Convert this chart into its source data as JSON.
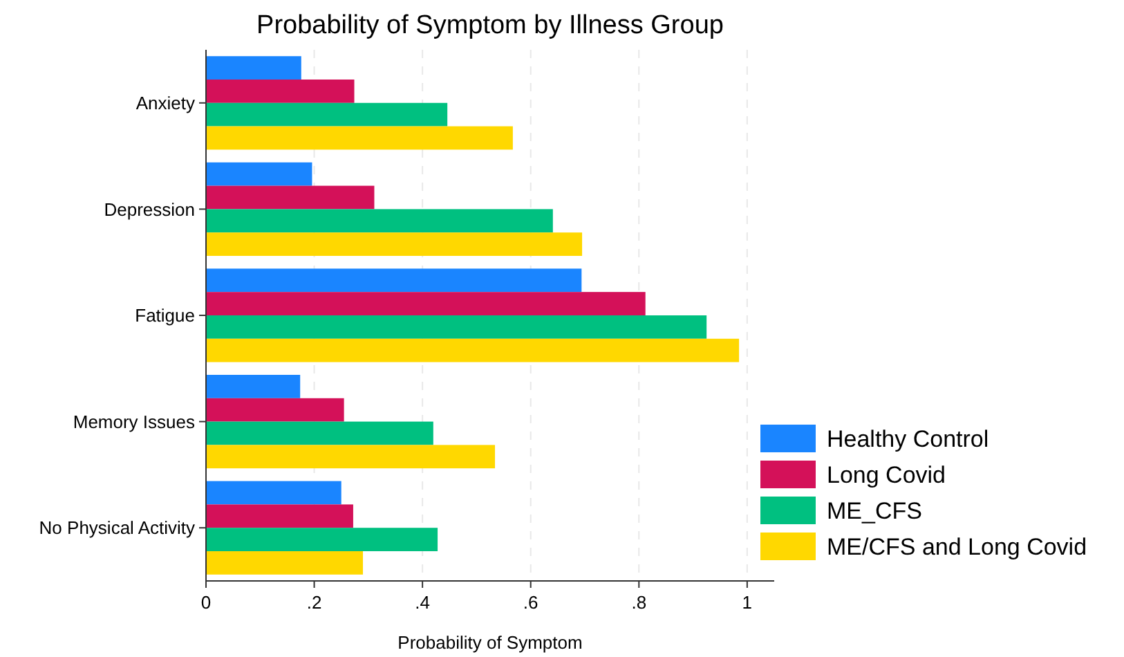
{
  "chart_data": {
    "type": "bar",
    "orientation": "horizontal",
    "title": "Probability of Symptom by Illness Group",
    "xlabel": "Probability of Symptom",
    "categories": [
      "Anxiety",
      "Depression",
      "Fatigue",
      "Memory Issues",
      "No Physical Activity"
    ],
    "series": [
      {
        "name": "Healthy Control",
        "color": "#1a85ff",
        "values": [
          0.176,
          0.196,
          0.694,
          0.174,
          0.25
        ]
      },
      {
        "name": "Long Covid",
        "color": "#d41159",
        "values": [
          0.274,
          0.311,
          0.812,
          0.255,
          0.272
        ]
      },
      {
        "name": "ME_CFS",
        "color": "#00c080",
        "values": [
          0.446,
          0.641,
          0.925,
          0.42,
          0.428
        ]
      },
      {
        "name": "ME/CFS and Long Covid",
        "color": "#ffd800",
        "values": [
          0.567,
          0.695,
          0.985,
          0.534,
          0.29
        ]
      }
    ],
    "xlim": [
      0,
      1.05
    ],
    "xticks": [
      0,
      {
        "value": 0.2,
        "label": ".2"
      },
      {
        "value": 0.4,
        "label": ".4"
      },
      {
        "value": 0.6,
        "label": ".6"
      },
      {
        "value": 0.8,
        "label": ".8"
      },
      1
    ],
    "grid": "x",
    "legend": "bottom right"
  }
}
